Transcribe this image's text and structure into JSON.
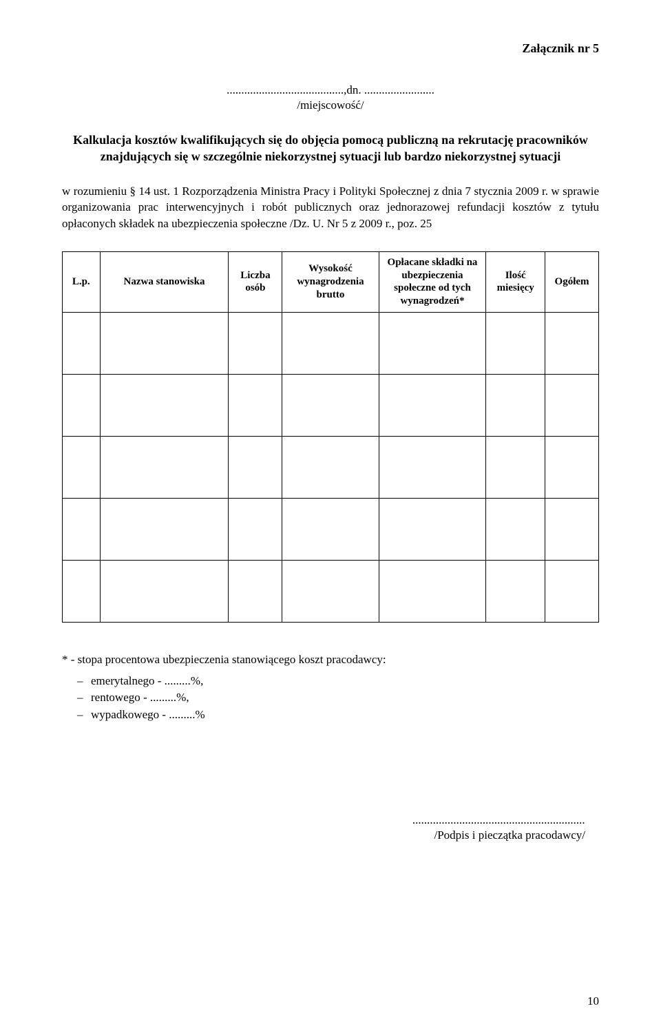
{
  "attachment": "Załącznik nr 5",
  "date_line": "........................................,dn. ........................",
  "place_label": "/miejscowość/",
  "title": "Kalkulacja kosztów kwalifikujących się do objęcia pomocą publiczną na rekrutację pracowników znajdujących się w szczególnie niekorzystnej sytuacji lub bardzo niekorzystnej sytuacji",
  "body_text": "w rozumieniu § 14 ust. 1 Rozporządzenia Ministra Pracy i Polityki Społecznej z dnia 7 stycznia 2009 r. w sprawie organizowania prac interwencyjnych i robót publicznych oraz jednorazowej refundacji kosztów z tytułu opłaconych składek na ubezpieczenia społeczne /Dz. U. Nr 5 z 2009 r., poz. 25",
  "table": {
    "columns": [
      "L.p.",
      "Nazwa stanowiska",
      "Liczba osób",
      "Wysokość wynagrodzenia brutto",
      "Opłacane składki na ubezpieczenia społeczne od tych wynagrodzeń*",
      "Ilość miesięcy",
      "Ogółem"
    ],
    "empty_rows": 5
  },
  "footnote_intro": "* - stopa procentowa ubezpieczenia stanowiącego koszt pracodawcy:",
  "footnote_items": [
    "emerytalnego - .........%,",
    "rentowego    - .........%,",
    "wypadkowego - .........%"
  ],
  "signature_dots": "...........................................................",
  "signature_label": "/Podpis i pieczątka pracodawcy/",
  "page_number": "10"
}
